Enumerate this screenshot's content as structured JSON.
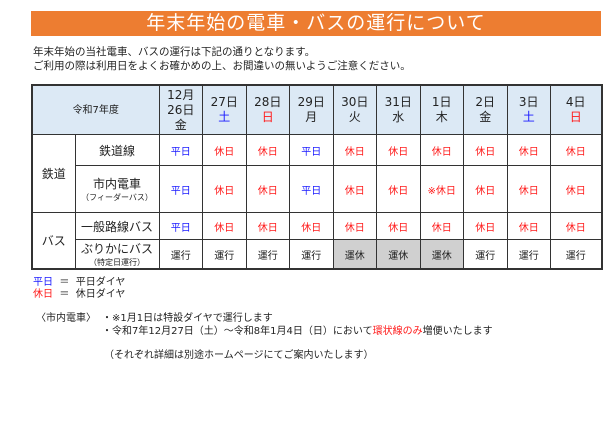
{
  "title": "年末年始の電車・バスの運行について",
  "intro": [
    "年末年始の当社電車、バスの運行は下記の通りとなります。",
    "ご利用の際は利用日をよくお確かめの上、お間違いの無いようご注意ください。"
  ],
  "table": {
    "corner": "令和7年度",
    "month": "12月",
    "dates": [
      {
        "d": "26日",
        "w": "金",
        "c": "k"
      },
      {
        "d": "27日",
        "w": "土",
        "c": "b"
      },
      {
        "d": "28日",
        "w": "日",
        "c": "r"
      },
      {
        "d": "29日",
        "w": "月",
        "c": "k"
      },
      {
        "d": "30日",
        "w": "火",
        "c": "k"
      },
      {
        "d": "31日",
        "w": "水",
        "c": "k"
      },
      {
        "d": "1日",
        "w": "木",
        "c": "k"
      },
      {
        "d": "2日",
        "w": "金",
        "c": "k"
      },
      {
        "d": "3日",
        "w": "土",
        "c": "b"
      },
      {
        "d": "4日",
        "w": "日",
        "c": "r"
      }
    ],
    "group_rail": "鉄道",
    "group_bus": "バス",
    "rows": [
      {
        "label": "鉄道線",
        "sub": "",
        "cells": [
          "平日",
          "休日",
          "休日",
          "平日",
          "休日",
          "休日",
          "休日",
          "休日",
          "休日",
          "休日"
        ]
      },
      {
        "label": "市内電車",
        "sub": "（フィーダーバス）",
        "cells": [
          "平日",
          "休日",
          "休日",
          "平日",
          "休日",
          "休日",
          "※休日",
          "休日",
          "休日",
          "休日"
        ]
      },
      {
        "label": "一般路線バス",
        "sub": "",
        "cells": [
          "平日",
          "休日",
          "休日",
          "休日",
          "休日",
          "休日",
          "休日",
          "休日",
          "休日",
          "休日"
        ]
      },
      {
        "label": "ぶりかにバス",
        "sub": "（特定日運行）",
        "cells": [
          "運行",
          "運行",
          "運行",
          "運行",
          "運休",
          "運休",
          "運休",
          "運行",
          "運行",
          "運行"
        ]
      }
    ]
  },
  "legend": [
    {
      "key": "平日",
      "eq": "＝",
      "val": "平日ダイヤ"
    },
    {
      "key": "休日",
      "eq": "＝",
      "val": "休日ダイヤ"
    }
  ],
  "notes": {
    "label": "〈市内電車〉",
    "items": [
      "・※1月1日は特設ダイヤで運行します"
    ],
    "item2_pre": "・令和7年12月27日（土）～令和8年1月4日（日）において",
    "item2_red": "環状線のみ",
    "item2_post": "増便いたします",
    "footer": "（それぞれ詳細は別途ホームページにてご案内いたします）"
  },
  "colors": {
    "accent": "#ed7d31",
    "weekday": "#1a1aff",
    "holiday": "#ff1a1a"
  }
}
